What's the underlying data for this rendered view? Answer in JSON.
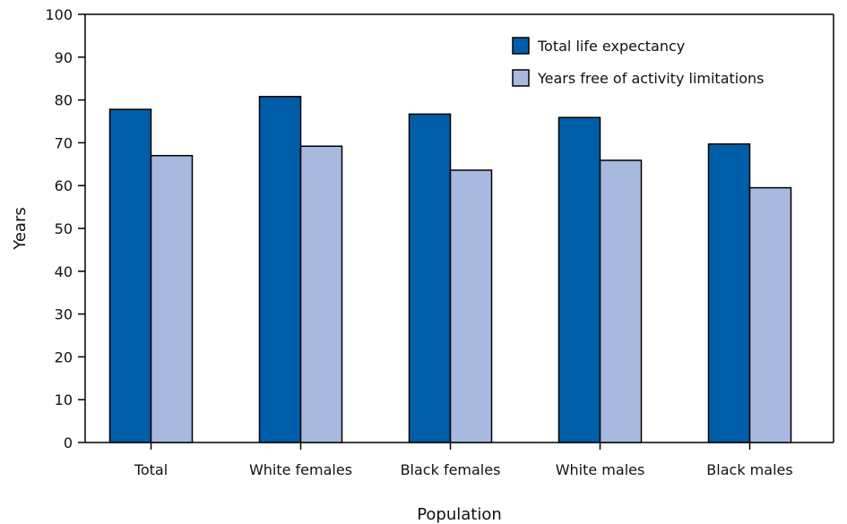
{
  "chart_data": {
    "type": "bar",
    "title": "",
    "xlabel": "Population",
    "ylabel": "Years",
    "ylim": [
      0,
      100
    ],
    "yticks": [
      0,
      10,
      20,
      30,
      40,
      50,
      60,
      70,
      80,
      90,
      100
    ],
    "grid": false,
    "legend_position": "top-right",
    "categories": [
      "Total",
      "White females",
      "Black females",
      "White males",
      "Black males"
    ],
    "series": [
      {
        "name": "Total life expectancy",
        "color": "#005EA8",
        "values": [
          77.8,
          80.8,
          76.7,
          75.9,
          69.7
        ]
      },
      {
        "name": "Years free of activity limitations",
        "color": "#A8B9E0",
        "values": [
          67.0,
          69.2,
          63.6,
          65.9,
          59.5
        ]
      }
    ]
  }
}
